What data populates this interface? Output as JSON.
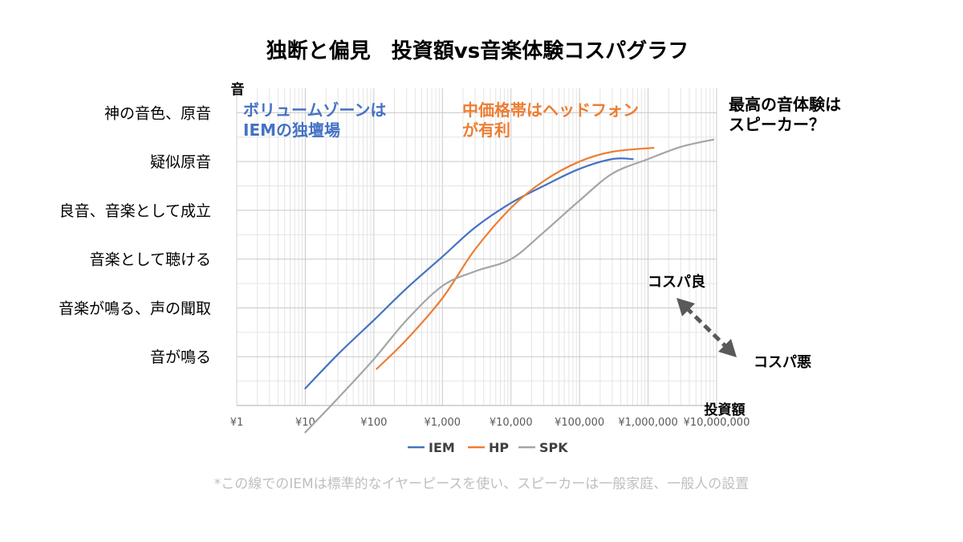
{
  "chart_data": {
    "type": "line",
    "title": "独断と偏見　投資額vs音楽体験コスパグラフ",
    "xlabel": "投資額",
    "ylabel": "音",
    "x_scale": "log",
    "xlim": [
      1,
      10000000
    ],
    "x_ticks": [
      "¥1",
      "¥10",
      "¥100",
      "¥1,000",
      "¥10,000",
      "¥100,000",
      "¥1,000,000",
      "¥10,000,000"
    ],
    "ylim": [
      0,
      6.5
    ],
    "y_ticks": [
      {
        "value": 1,
        "label": "音が鳴る"
      },
      {
        "value": 2,
        "label": "音楽が鳴る、声の聞取"
      },
      {
        "value": 3,
        "label": "音楽として聴ける"
      },
      {
        "value": 4,
        "label": "良音、音楽として成立"
      },
      {
        "value": 5,
        "label": "疑似原音"
      },
      {
        "value": 6,
        "label": "神の音色、原音"
      }
    ],
    "grid": true,
    "legend_position": "bottom",
    "series": [
      {
        "name": "IEM",
        "color": "#4472c4",
        "points": [
          [
            10,
            0.35
          ],
          [
            30,
            1.05
          ],
          [
            100,
            1.75
          ],
          [
            300,
            2.4
          ],
          [
            1000,
            3.05
          ],
          [
            3000,
            3.65
          ],
          [
            10000,
            4.15
          ],
          [
            30000,
            4.5
          ],
          [
            100000,
            4.85
          ],
          [
            300000,
            5.05
          ],
          [
            600000,
            5.05
          ]
        ]
      },
      {
        "name": "HP",
        "color": "#ed7d31",
        "points": [
          [
            110,
            0.75
          ],
          [
            300,
            1.35
          ],
          [
            1000,
            2.2
          ],
          [
            3000,
            3.2
          ],
          [
            10000,
            4.05
          ],
          [
            30000,
            4.6
          ],
          [
            100000,
            5.0
          ],
          [
            300000,
            5.2
          ],
          [
            1200000,
            5.28
          ]
        ]
      },
      {
        "name": "SPK",
        "color": "#a5a5a5",
        "points": [
          [
            10,
            -0.55
          ],
          [
            30,
            0.15
          ],
          [
            100,
            0.95
          ],
          [
            300,
            1.75
          ],
          [
            1000,
            2.45
          ],
          [
            3000,
            2.75
          ],
          [
            10000,
            3.0
          ],
          [
            30000,
            3.55
          ],
          [
            100000,
            4.2
          ],
          [
            300000,
            4.75
          ],
          [
            1000000,
            5.05
          ],
          [
            3000000,
            5.3
          ],
          [
            9000000,
            5.45
          ]
        ]
      }
    ],
    "annotations": [
      {
        "text": "ボリュームゾーンは\nIEMの独壇場",
        "color": "#4472c4"
      },
      {
        "text": "中価格帯はヘッドフォン\nが有利",
        "color": "#ed7d31"
      },
      {
        "text": "最高の音体験は\nスピーカー？",
        "color": "#000000"
      },
      {
        "text": "コスパ良",
        "color": "#000000"
      },
      {
        "text": "コスパ悪",
        "color": "#000000"
      }
    ],
    "footnote": "*この線でのIEMは標準的なイヤーピースを使い、スピーカーは一般家庭、一般人の設置",
    "arrow_color": "#595959"
  }
}
